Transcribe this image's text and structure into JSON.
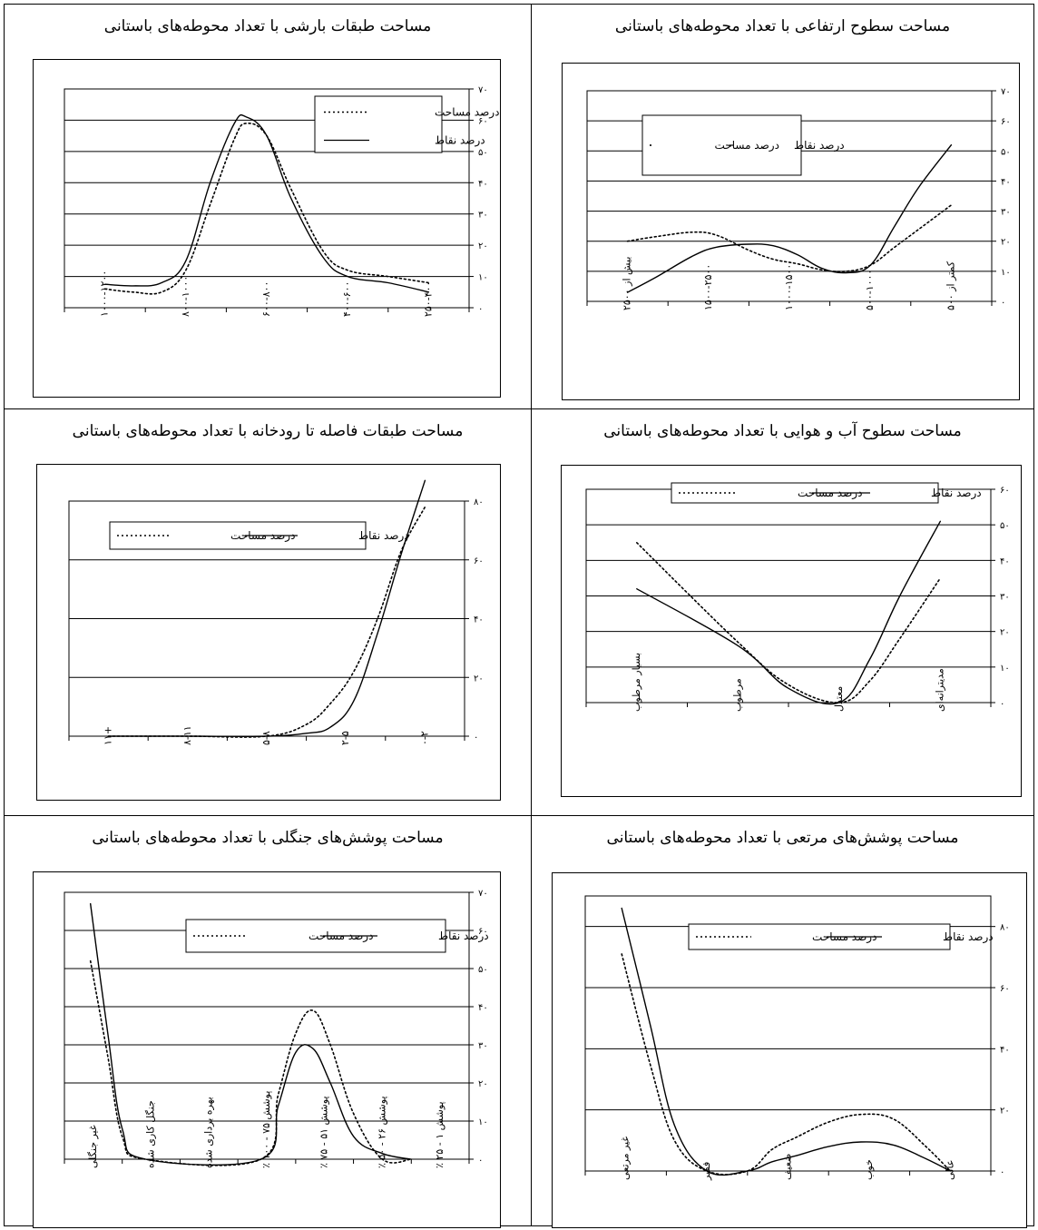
{
  "chart_data": [
    {
      "type": "line",
      "title": "مساحت طبقات بارشی با تعداد محوطه‌های باستانی",
      "categories": [
        "۱۰۰۰-۱۲۰۰",
        "۸۰۰-۱۰۰۰",
        "۶۰۰-۸۰۰",
        "۴۰۰-۶۰۰",
        "۲۵۰-۴۰۰"
      ],
      "x": [
        0.5,
        0.85,
        1.2,
        1.5,
        1.8,
        2.1,
        2.25,
        2.5,
        2.8,
        3.2,
        3.5,
        4.0,
        4.5
      ],
      "ylim": [
        0,
        70
      ],
      "yticks": [
        0,
        10,
        20,
        30,
        40,
        50,
        60,
        70
      ],
      "ytick_labels": [
        "۰",
        "۱۰",
        "۲۰",
        "۳۰",
        "۴۰",
        "۵۰",
        "۶۰",
        "۷۰"
      ],
      "legend": "top-right",
      "series": [
        {
          "name": "درصد مساحت",
          "style": "dotted",
          "values": [
            6,
            5,
            5,
            12,
            33,
            54,
            59,
            55,
            38,
            18,
            12,
            10,
            8
          ]
        },
        {
          "name": "درصد نقاط",
          "style": "solid",
          "values": [
            7.5,
            7,
            8,
            15,
            40,
            59,
            61,
            55,
            35,
            16,
            10,
            8,
            5
          ]
        }
      ]
    },
    {
      "type": "line",
      "title": "مساحت سطوح ارتفاعی با تعداد محوطه‌های باستانی",
      "categories": [
        "بیش از ۲۵۰۰",
        "۱۵۰۰-۲۵۰۰",
        "۱۰۰۰-۱۵۰۰",
        "۵۰۰-۱۰۰۰",
        "کمتر از ۵۰۰"
      ],
      "x": [
        0.5,
        0.85,
        1.3,
        1.6,
        2.0,
        2.3,
        2.6,
        2.9,
        3.2,
        3.5,
        3.8,
        4.1,
        4.5
      ],
      "ylim": [
        0,
        70
      ],
      "yticks": [
        0,
        10,
        20,
        30,
        40,
        50,
        60,
        70
      ],
      "ytick_labels": [
        "۰",
        "۱۰",
        "۲۰",
        "۳۰",
        "۴۰",
        "۵۰",
        "۶۰",
        "۷۰"
      ],
      "legend": "top-center",
      "series": [
        {
          "name": "درصد مساحت",
          "style": "dotted",
          "values": [
            20,
            21.5,
            23,
            22,
            17,
            14,
            12.5,
            10.5,
            10,
            12,
            18,
            24,
            32
          ]
        },
        {
          "name": "درصد نقاط",
          "style": "solid",
          "values": [
            3,
            8,
            15,
            18,
            19,
            18.5,
            15.5,
            11,
            9.5,
            12,
            25,
            38,
            52
          ]
        }
      ]
    },
    {
      "type": "line",
      "title": "مساحت طبقات فاصله تا رودخانه با تعداد محوطه‌های باستانی",
      "categories": [
        "+۱۱",
        "۸-۱۱",
        "۵-۸",
        "۲-۵",
        "۰-۲"
      ],
      "x": [
        0.5,
        1.5,
        2.5,
        3.0,
        3.3,
        3.6,
        3.9,
        4.2,
        4.5
      ],
      "ylim": [
        0,
        80
      ],
      "yticks": [
        0,
        20,
        40,
        60,
        80
      ],
      "ytick_labels": [
        "۰",
        "۲۰",
        "۴۰",
        "۶۰",
        "۸۰"
      ],
      "legend": "top-center",
      "series": [
        {
          "name": "درصد مساحت",
          "style": "dotted",
          "values": [
            0,
            0,
            0,
            4,
            11,
            22,
            40,
            63,
            78
          ]
        },
        {
          "name": "درصد نقاط",
          "style": "solid",
          "values": [
            0,
            0,
            0,
            1,
            3,
            12,
            35,
            62,
            87
          ]
        }
      ]
    },
    {
      "type": "line",
      "title": "مساحت سطوح آب و هوایی با تعداد محوطه‌های باستانی",
      "categories": [
        "بسیار مرطوب",
        "مرطوب",
        "معتدل",
        "مدیترانه‌ای"
      ],
      "x": [
        0.5,
        1.5,
        2.0,
        2.5,
        2.8,
        3.1,
        3.5
      ],
      "ylim": [
        0,
        60
      ],
      "yticks": [
        0,
        10,
        20,
        30,
        40,
        50,
        60
      ],
      "ytick_labels": [
        "۰",
        "۱۰",
        "۲۰",
        "۳۰",
        "۴۰",
        "۵۰",
        "۶۰"
      ],
      "legend": "top-center",
      "series": [
        {
          "name": "درصد مساحت",
          "style": "dotted",
          "values": [
            45,
            17,
            5,
            0,
            6,
            18,
            35
          ]
        },
        {
          "name": "درصد نقاط",
          "style": "solid",
          "values": [
            32,
            16,
            4,
            0,
            12,
            30,
            51
          ]
        }
      ]
    },
    {
      "type": "line",
      "title": "مساحت پوشش‌های جنگلی با تعداد محوطه‌های باستانی",
      "categories": [
        "غیر جنگلی",
        "جنگل کاری شده",
        "بهره برداری شده",
        "پوشش ۷۵ - ۱۰۰ ٪",
        "پوشش ۵۱ - ۷۵ ٪",
        "پوشش ۲۶ - ۵۰ ٪",
        "پوشش ۱ - ۲۵ ٪"
      ],
      "x": [
        0.45,
        0.75,
        1.0,
        1.4,
        3.4,
        3.7,
        4.0,
        4.3,
        4.6,
        5.0,
        5.5,
        6.0
      ],
      "ylim": [
        0,
        70
      ],
      "yticks": [
        0,
        10,
        20,
        30,
        40,
        50,
        60,
        70
      ],
      "ytick_labels": [
        "۰",
        "۱۰",
        "۲۰",
        "۳۰",
        "۴۰",
        "۵۰",
        "۶۰",
        "۷۰"
      ],
      "legend": "top-center",
      "series": [
        {
          "name": "درصد مساحت",
          "style": "dotted",
          "values": [
            52,
            27,
            6,
            0,
            0,
            17,
            33,
            39,
            30,
            12,
            0,
            0
          ]
        },
        {
          "name": "درصد نقاط",
          "style": "solid",
          "values": [
            67,
            33,
            8,
            0,
            0,
            14,
            28,
            29,
            20,
            6,
            1.5,
            0
          ]
        }
      ]
    },
    {
      "type": "line",
      "title": "مساحت پوشش‌های مرتعی با تعداد محوطه‌های باستانی",
      "categories": [
        "غیر مرتعی",
        "فقیر",
        "ضعیف",
        "خوب",
        "عالی"
      ],
      "x": [
        0.45,
        0.8,
        1.1,
        1.5,
        2.0,
        2.3,
        2.6,
        3.0,
        3.4,
        3.8,
        4.2,
        4.5
      ],
      "ylim": [
        0,
        90
      ],
      "yticks": [
        0,
        20,
        40,
        60,
        80
      ],
      "ytick_labels": [
        "۰",
        "۲۰",
        "۴۰",
        "۶۰",
        "۸۰"
      ],
      "legend": "top-right",
      "series": [
        {
          "name": "درصد مساحت",
          "style": "dotted",
          "values": [
            71,
            35,
            10,
            0,
            0,
            7,
            11,
            16,
            18.5,
            17,
            8,
            0
          ]
        },
        {
          "name": "درصد نقاط",
          "style": "solid",
          "values": [
            86,
            48,
            15,
            0,
            0,
            3,
            5,
            8,
            9.5,
            8.5,
            4,
            0
          ]
        }
      ]
    }
  ]
}
